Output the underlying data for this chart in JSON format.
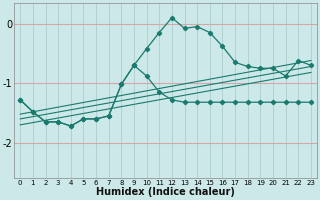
{
  "xlabel": "Humidex (Indice chaleur)",
  "background_color": "#cce8e8",
  "line_color": "#1a7a6e",
  "xlim": [
    -0.5,
    23.5
  ],
  "ylim": [
    -2.6,
    0.35
  ],
  "yticks": [
    0,
    -1,
    -2
  ],
  "xticks": [
    0,
    1,
    2,
    3,
    4,
    5,
    6,
    7,
    8,
    9,
    10,
    11,
    12,
    13,
    14,
    15,
    16,
    17,
    18,
    19,
    20,
    21,
    22,
    23
  ],
  "curve1_x": [
    0,
    1,
    2,
    3,
    4,
    5,
    6,
    7,
    8,
    9,
    10,
    11,
    12,
    13,
    14,
    15,
    16,
    17,
    18,
    19,
    20,
    21,
    22,
    23
  ],
  "curve1_y": [
    -1.28,
    -1.48,
    -1.65,
    -1.65,
    -1.72,
    -1.6,
    -1.6,
    -1.55,
    -1.02,
    -0.7,
    -0.42,
    -0.15,
    0.1,
    -0.08,
    -0.05,
    -0.15,
    -0.38,
    -0.65,
    -0.72,
    -0.75,
    -0.75,
    -0.88,
    -0.62,
    -0.7
  ],
  "curve2_x": [
    0,
    1,
    2,
    3,
    4,
    5,
    6,
    7,
    8,
    9,
    10,
    11,
    12,
    13,
    14,
    15,
    16,
    17,
    18,
    19,
    20,
    21,
    22,
    23
  ],
  "curve2_y": [
    -1.28,
    -1.48,
    -1.65,
    -1.65,
    -1.72,
    -1.6,
    -1.6,
    -1.55,
    -1.02,
    -0.7,
    -0.88,
    -1.15,
    -1.28,
    -1.32,
    -1.32,
    -1.32,
    -1.32,
    -1.32,
    -1.32,
    -1.32,
    -1.32,
    -1.32,
    -1.32,
    -1.32
  ],
  "reg_lines": [
    {
      "x": [
        0,
        23
      ],
      "y": [
        -1.52,
        -0.62
      ]
    },
    {
      "x": [
        0,
        23
      ],
      "y": [
        -1.6,
        -0.72
      ]
    },
    {
      "x": [
        0,
        23
      ],
      "y": [
        -1.7,
        -0.82
      ]
    }
  ]
}
